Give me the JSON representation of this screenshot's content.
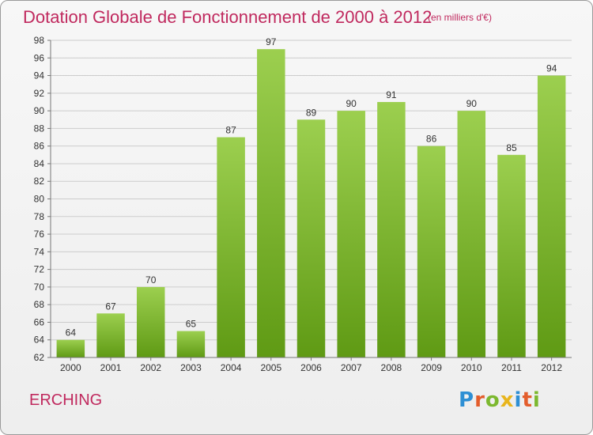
{
  "header": {
    "title": "Dotation Globale de Fonctionnement de 2000 à 2012",
    "subtitle": "(en milliers d'€)"
  },
  "footer": {
    "commune": "ERCHING",
    "logo_text": "Proxiti",
    "logo_letters": [
      {
        "ch": "P",
        "color": "#2e8fd4"
      },
      {
        "ch": "r",
        "color": "#e35d2c"
      },
      {
        "ch": "o",
        "color": "#7cb82f"
      },
      {
        "ch": "x",
        "color": "#e8b51d"
      },
      {
        "ch": "i",
        "color": "#2e8fd4"
      },
      {
        "ch": "t",
        "color": "#e35d2c"
      },
      {
        "ch": "i",
        "color": "#7cb82f"
      }
    ]
  },
  "chart_data": {
    "type": "bar",
    "categories": [
      "2000",
      "2001",
      "2002",
      "2003",
      "2004",
      "2005",
      "2006",
      "2007",
      "2008",
      "2009",
      "2010",
      "2011",
      "2012"
    ],
    "values": [
      64,
      67,
      70,
      65,
      87,
      97,
      89,
      90,
      91,
      86,
      90,
      85,
      94
    ],
    "ylim": [
      62,
      98
    ],
    "yticks": [
      62,
      64,
      66,
      68,
      70,
      72,
      74,
      76,
      78,
      80,
      82,
      84,
      86,
      88,
      90,
      92,
      94,
      96,
      98
    ],
    "grid": true,
    "data_labels": true,
    "colors": {
      "bar_top": "#9ccf4f",
      "bar_bottom": "#5f9a14",
      "grid": "#cccccc",
      "axis": "#777777",
      "text": "#333333"
    }
  }
}
